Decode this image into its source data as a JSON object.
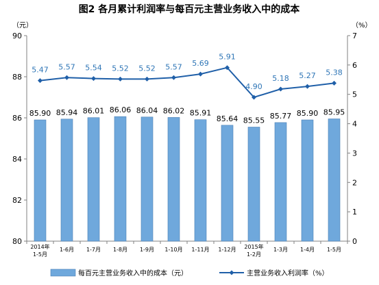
{
  "chart_data": {
    "type": "bar",
    "title": "图2  各月累计利润率与每百元主营业务收入中的成本",
    "left_unit": "（元）",
    "right_unit": "（%）",
    "categories": [
      [
        "2014年",
        "1-5月"
      ],
      [
        "1-6月"
      ],
      [
        "1-7月"
      ],
      [
        "1-8月"
      ],
      [
        "1-9月"
      ],
      [
        "1-10月"
      ],
      [
        "1-11月"
      ],
      [
        "1-12月"
      ],
      [
        "2015年",
        "1-2月"
      ],
      [
        "1-3月"
      ],
      [
        "1-4月"
      ],
      [
        "1-5月"
      ]
    ],
    "series": [
      {
        "name": "每百元主营业务收入中的成本（元）",
        "type": "bar",
        "axis": "left",
        "color": "#6fa8dc",
        "values": [
          85.9,
          85.94,
          86.01,
          86.06,
          86.04,
          86.02,
          85.91,
          85.64,
          85.55,
          85.77,
          85.9,
          85.95
        ],
        "labels": [
          "85.90",
          "85.94",
          "86.01",
          "86.06",
          "86.04",
          "86.02",
          "85.91",
          "85.64",
          "85.55",
          "85.77",
          "85.90",
          "85.95"
        ]
      },
      {
        "name": "主营业务收入利润率（%）",
        "type": "line",
        "axis": "right",
        "color": "#1f5fa8",
        "label_color": "#2e75b6",
        "values": [
          5.47,
          5.57,
          5.54,
          5.52,
          5.52,
          5.57,
          5.69,
          5.91,
          4.9,
          5.18,
          5.27,
          5.38
        ],
        "labels": [
          "5.47",
          "5.57",
          "5.54",
          "5.52",
          "5.52",
          "5.57",
          "5.69",
          "5.91",
          "4.90",
          "5.18",
          "5.27",
          "5.38"
        ]
      }
    ],
    "ylim_left": [
      80,
      90
    ],
    "yticks_left": [
      "80",
      "82",
      "84",
      "86",
      "88",
      "90"
    ],
    "ylim_right": [
      0,
      7
    ],
    "yticks_right": [
      "0",
      "1",
      "2",
      "3",
      "4",
      "5",
      "6",
      "7"
    ],
    "grid": false,
    "legend_position": "bottom"
  }
}
